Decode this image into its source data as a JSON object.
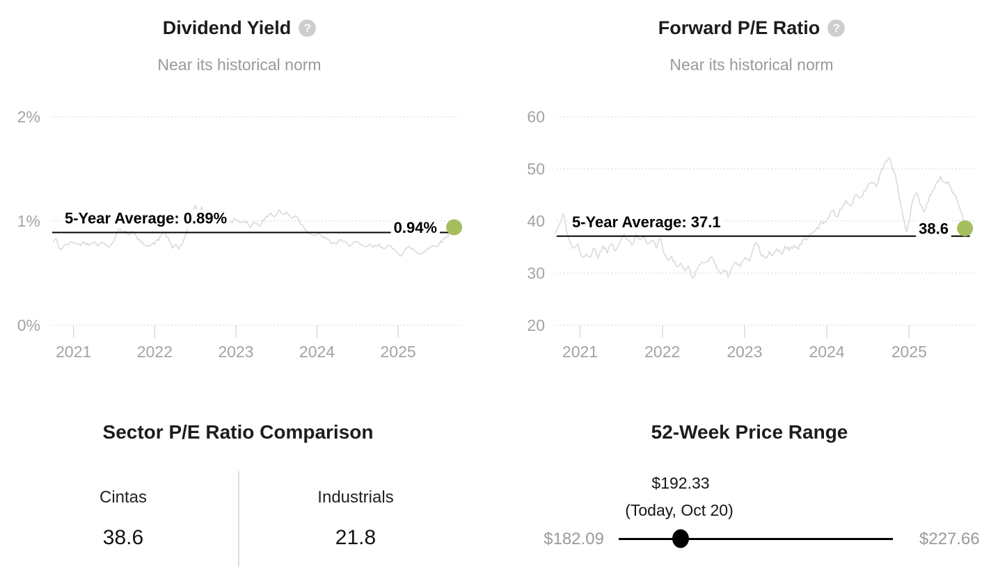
{
  "icons": {
    "help": "?"
  },
  "colors": {
    "accent_dot": "#a7be5e",
    "average_line": "#000000",
    "series_line": "#d8d8d8",
    "gridline": "#cfcfcf",
    "axis_label": "#a3a3a3",
    "muted_text": "#999999",
    "title_text": "#1c1c1c"
  },
  "chart_data": [
    {
      "type": "line",
      "id": "dividend-yield",
      "title": "Dividend Yield",
      "subtitle": "Near its historical norm",
      "average": {
        "label": "5-Year Average: 0.89%",
        "value": 0.89
      },
      "current": {
        "label": "0.94%",
        "value": 0.94
      },
      "ylim": [
        0,
        2.1
      ],
      "y_ticks": [
        {
          "label": "2%",
          "value": 2
        },
        {
          "label": "1%",
          "value": 1
        },
        {
          "label": "0%",
          "value": 0
        }
      ],
      "x_ticks": [
        {
          "label": "2021",
          "value": 2021
        },
        {
          "label": "2022",
          "value": 2022
        },
        {
          "label": "2023",
          "value": 2023
        },
        {
          "label": "2024",
          "value": 2024
        },
        {
          "label": "2025",
          "value": 2025
        }
      ],
      "noise": {
        "seed": 42,
        "amp": 0.016
      },
      "series_anchors": [
        [
          2020.75,
          0.8
        ],
        [
          2020.78,
          0.835
        ],
        [
          2020.8,
          0.79
        ],
        [
          2020.84,
          0.725
        ],
        [
          2020.88,
          0.76
        ],
        [
          2020.94,
          0.78
        ],
        [
          2021.0,
          0.8
        ],
        [
          2021.06,
          0.77
        ],
        [
          2021.12,
          0.795
        ],
        [
          2021.18,
          0.78
        ],
        [
          2021.24,
          0.8
        ],
        [
          2021.3,
          0.775
        ],
        [
          2021.36,
          0.79
        ],
        [
          2021.42,
          0.76
        ],
        [
          2021.48,
          0.78
        ],
        [
          2021.52,
          0.86
        ],
        [
          2021.56,
          0.94
        ],
        [
          2021.6,
          0.88
        ],
        [
          2021.64,
          0.92
        ],
        [
          2021.68,
          0.87
        ],
        [
          2021.72,
          0.9
        ],
        [
          2021.76,
          0.86
        ],
        [
          2021.82,
          0.8
        ],
        [
          2021.88,
          0.78
        ],
        [
          2021.94,
          0.76
        ],
        [
          2022.0,
          0.79
        ],
        [
          2022.05,
          0.82
        ],
        [
          2022.1,
          0.9
        ],
        [
          2022.14,
          0.87
        ],
        [
          2022.18,
          0.8
        ],
        [
          2022.22,
          0.74
        ],
        [
          2022.26,
          0.78
        ],
        [
          2022.3,
          0.73
        ],
        [
          2022.34,
          0.79
        ],
        [
          2022.38,
          0.85
        ],
        [
          2022.42,
          0.95
        ],
        [
          2022.46,
          1.05
        ],
        [
          2022.5,
          1.18
        ],
        [
          2022.54,
          1.02
        ],
        [
          2022.58,
          1.13
        ],
        [
          2022.62,
          0.97
        ],
        [
          2022.66,
          1.09
        ],
        [
          2022.7,
          1.0
        ],
        [
          2022.75,
          1.05
        ],
        [
          2022.8,
          1.0
        ],
        [
          2022.85,
          1.07
        ],
        [
          2022.9,
          1.02
        ],
        [
          2022.95,
          0.99
        ],
        [
          2023.0,
          1.03
        ],
        [
          2023.06,
          0.97
        ],
        [
          2023.12,
          1.0
        ],
        [
          2023.18,
          0.95
        ],
        [
          2023.24,
          0.99
        ],
        [
          2023.3,
          0.96
        ],
        [
          2023.36,
          1.02
        ],
        [
          2023.42,
          1.08
        ],
        [
          2023.48,
          1.04
        ],
        [
          2023.54,
          1.11
        ],
        [
          2023.58,
          1.05
        ],
        [
          2023.62,
          1.09
        ],
        [
          2023.68,
          1.03
        ],
        [
          2023.74,
          1.06
        ],
        [
          2023.8,
          0.98
        ],
        [
          2023.86,
          0.92
        ],
        [
          2023.92,
          0.88
        ],
        [
          2023.98,
          0.86
        ],
        [
          2024.04,
          0.87
        ],
        [
          2024.1,
          0.835
        ],
        [
          2024.16,
          0.8
        ],
        [
          2024.22,
          0.78
        ],
        [
          2024.28,
          0.815
        ],
        [
          2024.34,
          0.79
        ],
        [
          2024.4,
          0.77
        ],
        [
          2024.46,
          0.8
        ],
        [
          2024.52,
          0.78
        ],
        [
          2024.58,
          0.745
        ],
        [
          2024.64,
          0.77
        ],
        [
          2024.7,
          0.75
        ],
        [
          2024.76,
          0.77
        ],
        [
          2024.82,
          0.745
        ],
        [
          2024.88,
          0.76
        ],
        [
          2024.94,
          0.73
        ],
        [
          2025.0,
          0.7
        ],
        [
          2025.04,
          0.67
        ],
        [
          2025.08,
          0.72
        ],
        [
          2025.14,
          0.75
        ],
        [
          2025.2,
          0.72
        ],
        [
          2025.26,
          0.68
        ],
        [
          2025.32,
          0.71
        ],
        [
          2025.38,
          0.745
        ],
        [
          2025.44,
          0.76
        ],
        [
          2025.5,
          0.78
        ],
        [
          2025.56,
          0.82
        ],
        [
          2025.62,
          0.87
        ],
        [
          2025.66,
          0.91
        ],
        [
          2025.69,
          0.94
        ]
      ]
    },
    {
      "type": "line",
      "id": "forward-pe-ratio",
      "title": "Forward P/E Ratio",
      "subtitle": "Near its historical norm",
      "average": {
        "label": "5-Year Average: 37.1",
        "value": 37.1
      },
      "current": {
        "label": "38.6",
        "value": 38.6
      },
      "ylim": [
        20,
        60
      ],
      "y_ticks": [
        {
          "label": "60",
          "value": 60
        },
        {
          "label": "50",
          "value": 50
        },
        {
          "label": "40",
          "value": 40
        },
        {
          "label": "30",
          "value": 30
        },
        {
          "label": "20",
          "value": 20
        }
      ],
      "x_ticks": [
        {
          "label": "2021",
          "value": 2021
        },
        {
          "label": "2022",
          "value": 2022
        },
        {
          "label": "2023",
          "value": 2023
        },
        {
          "label": "2024",
          "value": 2024
        },
        {
          "label": "2025",
          "value": 2025
        }
      ],
      "noise": {
        "seed": 1337,
        "amp": 0.5
      },
      "series_anchors": [
        [
          2020.7,
          37.7
        ],
        [
          2020.76,
          39.5
        ],
        [
          2020.8,
          42.0
        ],
        [
          2020.83,
          38.5
        ],
        [
          2020.87,
          36.1
        ],
        [
          2020.92,
          34.8
        ],
        [
          2020.97,
          35.8
        ],
        [
          2021.02,
          32.5
        ],
        [
          2021.07,
          34.0
        ],
        [
          2021.12,
          33.0
        ],
        [
          2021.17,
          34.8
        ],
        [
          2021.22,
          33.2
        ],
        [
          2021.28,
          35.2
        ],
        [
          2021.33,
          34.2
        ],
        [
          2021.38,
          36.0
        ],
        [
          2021.43,
          34.6
        ],
        [
          2021.48,
          35.8
        ],
        [
          2021.53,
          37.6
        ],
        [
          2021.58,
          36.2
        ],
        [
          2021.63,
          35.2
        ],
        [
          2021.68,
          37.8
        ],
        [
          2021.73,
          36.6
        ],
        [
          2021.78,
          37.2
        ],
        [
          2021.83,
          35.4
        ],
        [
          2021.88,
          36.4
        ],
        [
          2021.93,
          35.2
        ],
        [
          2021.97,
          37.1
        ],
        [
          2022.02,
          34.0
        ],
        [
          2022.07,
          32.2
        ],
        [
          2022.12,
          33.0
        ],
        [
          2022.17,
          31.2
        ],
        [
          2022.22,
          31.8
        ],
        [
          2022.27,
          30.0
        ],
        [
          2022.32,
          31.5
        ],
        [
          2022.38,
          28.8
        ],
        [
          2022.43,
          31.0
        ],
        [
          2022.48,
          32.5
        ],
        [
          2022.53,
          31.5
        ],
        [
          2022.58,
          33.5
        ],
        [
          2022.62,
          32.5
        ],
        [
          2022.66,
          31.0
        ],
        [
          2022.71,
          29.8
        ],
        [
          2022.76,
          30.8
        ],
        [
          2022.8,
          29.7
        ],
        [
          2022.85,
          31.2
        ],
        [
          2022.9,
          32.2
        ],
        [
          2022.95,
          31.2
        ],
        [
          2023.0,
          33.2
        ],
        [
          2023.05,
          32.2
        ],
        [
          2023.1,
          34.5
        ],
        [
          2023.15,
          35.9
        ],
        [
          2023.2,
          33.5
        ],
        [
          2023.25,
          32.6
        ],
        [
          2023.3,
          34.2
        ],
        [
          2023.35,
          33.4
        ],
        [
          2023.4,
          34.8
        ],
        [
          2023.45,
          33.8
        ],
        [
          2023.5,
          35.2
        ],
        [
          2023.55,
          34.4
        ],
        [
          2023.6,
          35.6
        ],
        [
          2023.65,
          34.6
        ],
        [
          2023.7,
          36.0
        ],
        [
          2023.76,
          36.8
        ],
        [
          2023.82,
          37.4
        ],
        [
          2023.88,
          38.6
        ],
        [
          2023.94,
          39.6
        ],
        [
          2024.0,
          40.4
        ],
        [
          2024.06,
          42.0
        ],
        [
          2024.12,
          40.8
        ],
        [
          2024.18,
          42.6
        ],
        [
          2024.24,
          44.0
        ],
        [
          2024.3,
          43.0
        ],
        [
          2024.36,
          45.2
        ],
        [
          2024.42,
          44.2
        ],
        [
          2024.48,
          46.4
        ],
        [
          2024.54,
          47.6
        ],
        [
          2024.6,
          46.6
        ],
        [
          2024.66,
          49.2
        ],
        [
          2024.71,
          51.0
        ],
        [
          2024.75,
          52.3
        ],
        [
          2024.79,
          50.6
        ],
        [
          2024.84,
          48.2
        ],
        [
          2024.89,
          44.0
        ],
        [
          2024.94,
          39.5
        ],
        [
          2024.98,
          37.8
        ],
        [
          2025.03,
          43.0
        ],
        [
          2025.08,
          45.6
        ],
        [
          2025.13,
          44.0
        ],
        [
          2025.18,
          41.2
        ],
        [
          2025.23,
          43.6
        ],
        [
          2025.28,
          45.8
        ],
        [
          2025.33,
          47.2
        ],
        [
          2025.38,
          48.2
        ],
        [
          2025.43,
          47.0
        ],
        [
          2025.48,
          47.8
        ],
        [
          2025.53,
          45.8
        ],
        [
          2025.58,
          44.2
        ],
        [
          2025.62,
          42.6
        ],
        [
          2025.65,
          40.8
        ],
        [
          2025.68,
          38.6
        ]
      ]
    },
    {
      "type": "table",
      "id": "sector-pe-comparison",
      "title": "Sector P/E Ratio Comparison",
      "columns": [
        {
          "label": "Cintas",
          "value": "38.6"
        },
        {
          "label": "Industrials",
          "value": "21.8"
        }
      ]
    },
    {
      "type": "range",
      "id": "52-week-price-range",
      "title": "52-Week Price Range",
      "min": 182.09,
      "max": 227.66,
      "current": 192.33,
      "min_label": "$182.09",
      "max_label": "$227.66",
      "current_label": "$192.33",
      "current_sublabel": "(Today, Oct 20)"
    }
  ]
}
